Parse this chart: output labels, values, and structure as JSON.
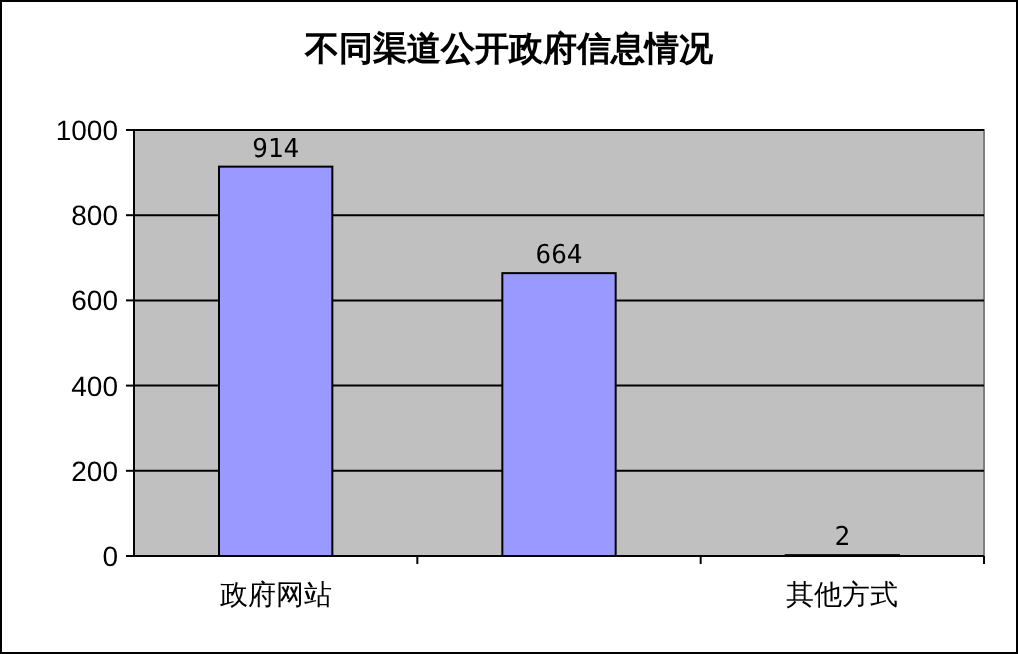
{
  "chart_data": {
    "type": "bar",
    "title": "不同渠道公开政府信息情况",
    "categories": [
      "政府网站",
      null,
      "其他方式"
    ],
    "values": [
      914,
      664,
      2
    ],
    "color": "#9999ff",
    "ylim": [
      0,
      1000
    ],
    "yticks": [
      0,
      200,
      400,
      600,
      800,
      1000
    ],
    "grid": "y",
    "data_labels": true
  }
}
